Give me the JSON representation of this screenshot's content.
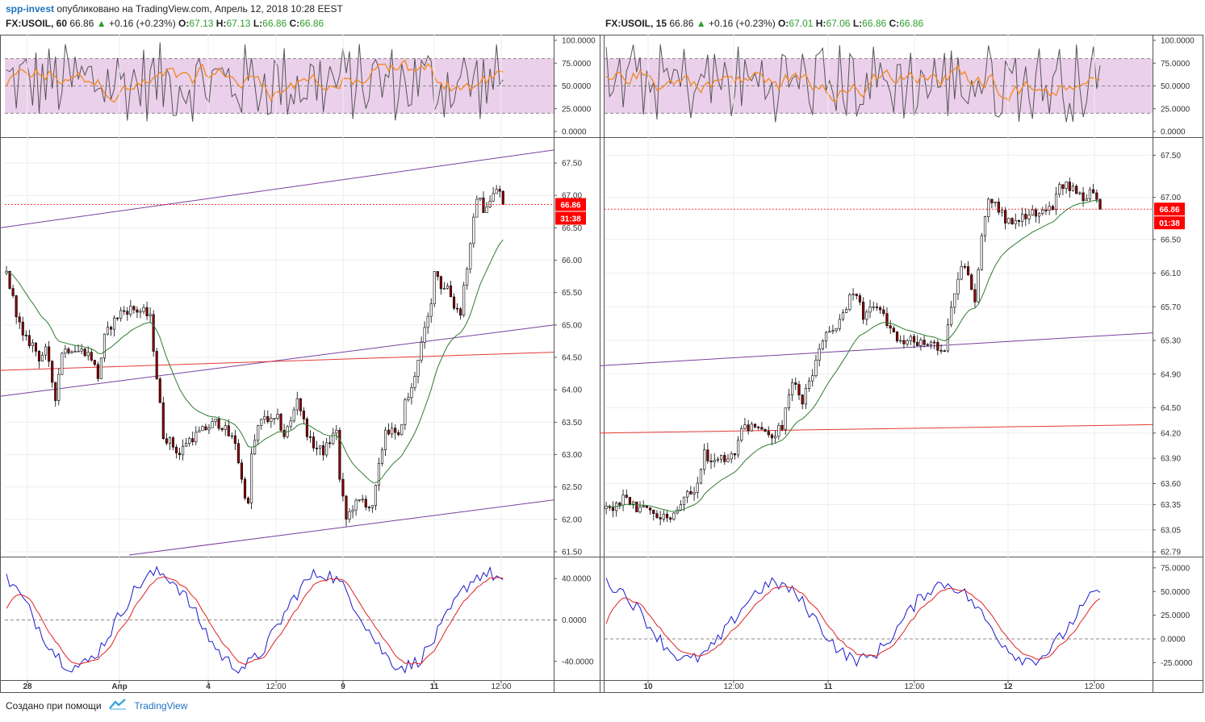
{
  "header": {
    "author": "spp-invest",
    "published": "опубликовано на TradingView.com, Апрель 12, 2018 10:28 EEST"
  },
  "footer": {
    "created_with": "Создано при помощи",
    "brand": "TradingView"
  },
  "colors": {
    "up_candle": "#ffffff",
    "down_candle": "#8b0000",
    "ma": "#2e7d32",
    "channel": "#7b3fa0",
    "support": "#e53935",
    "rsi_band": "#e8c8e8",
    "rsi_fast": "#555555",
    "rsi_slow": "#f08c2a",
    "stoch_k": "#1a1acc",
    "stoch_d": "#e02020",
    "price_label": "#ff0000"
  },
  "panes": [
    {
      "symbol": "FX:USOIL, 60",
      "last": "66.86",
      "change": "+0.16 (+0.23%)",
      "ohlc": [
        [
          "O:",
          "67.13"
        ],
        [
          "H:",
          "67.13"
        ],
        [
          "L:",
          "66.86"
        ],
        [
          "C:",
          "66.86"
        ]
      ],
      "price_label": "66.86",
      "countdown": "31:38",
      "rsi_ticks": [
        "100.0000",
        "75.0000",
        "50.0000",
        "25.0000",
        "0.0000"
      ],
      "price_ticks": [
        "67.50",
        "67.00",
        "66.50",
        "66.00",
        "65.50",
        "65.00",
        "64.50",
        "64.00",
        "63.50",
        "63.00",
        "62.50",
        "62.00",
        "61.50"
      ],
      "osc_ticks": [
        "40.0000",
        "0.0000",
        "-40.0000"
      ],
      "x_ticks": [
        "28",
        "Апр",
        "4",
        "12:00",
        "9",
        "11",
        "12:00"
      ]
    },
    {
      "symbol": "FX:USOIL, 15",
      "last": "66.86",
      "change": "+0.16 (+0.23%)",
      "ohlc": [
        [
          "O:",
          "67.01"
        ],
        [
          "H:",
          "67.06"
        ],
        [
          "L:",
          "66.86"
        ],
        [
          "C:",
          "66.86"
        ]
      ],
      "price_label": "66.86",
      "countdown": "01:38",
      "rsi_ticks": [
        "100.0000",
        "75.0000",
        "50.0000",
        "25.0000",
        "0.0000"
      ],
      "price_ticks": [
        "67.50",
        "67.00",
        "66.50",
        "66.10",
        "65.70",
        "65.30",
        "64.90",
        "64.50",
        "64.20",
        "63.90",
        "63.60",
        "63.35",
        "63.05",
        "62.79"
      ],
      "osc_ticks": [
        "75.0000",
        "50.0000",
        "25.0000",
        "0.0000",
        "-25.0000"
      ],
      "x_ticks": [
        "10",
        "12:00",
        "11",
        "12:00",
        "12",
        "12:00"
      ]
    }
  ],
  "chart_data": [
    {
      "type": "candlestick",
      "title": "FX:USOIL, 60",
      "ylim": [
        61.5,
        67.75
      ],
      "current_price": 66.86,
      "close_path": [
        [
          0,
          65.8
        ],
        [
          2,
          65.4
        ],
        [
          5,
          64.8
        ],
        [
          8,
          64.7
        ],
        [
          10,
          64.5
        ],
        [
          12,
          64.6
        ],
        [
          15,
          63.9
        ],
        [
          17,
          64.6
        ],
        [
          20,
          64.65
        ],
        [
          22,
          64.6
        ],
        [
          24,
          64.6
        ],
        [
          26,
          64.5
        ],
        [
          28,
          64.2
        ],
        [
          30,
          64.8
        ],
        [
          32,
          65.0
        ],
        [
          35,
          65.2
        ],
        [
          38,
          65.25
        ],
        [
          42,
          65.2
        ],
        [
          44,
          65.1
        ],
        [
          46,
          64.2
        ],
        [
          48,
          63.3
        ],
        [
          50,
          63.2
        ],
        [
          53,
          63.0
        ],
        [
          55,
          63.2
        ],
        [
          58,
          63.3
        ],
        [
          61,
          63.4
        ],
        [
          64,
          63.5
        ],
        [
          66,
          63.45
        ],
        [
          68,
          63.3
        ],
        [
          70,
          63.2
        ],
        [
          72,
          62.6
        ],
        [
          74,
          62.2
        ],
        [
          75,
          63.0
        ],
        [
          77,
          63.4
        ],
        [
          79,
          63.6
        ],
        [
          81,
          63.5
        ],
        [
          83,
          63.55
        ],
        [
          85,
          63.3
        ],
        [
          87,
          63.5
        ],
        [
          89,
          63.9
        ],
        [
          91,
          63.5
        ],
        [
          93,
          63.2
        ],
        [
          95,
          63.1
        ],
        [
          97,
          63.05
        ],
        [
          99,
          63.2
        ],
        [
          101,
          63.4
        ],
        [
          102,
          62.6
        ],
        [
          104,
          62.0
        ],
        [
          106,
          62.2
        ],
        [
          109,
          62.3
        ],
        [
          112,
          62.15
        ],
        [
          114,
          62.8
        ],
        [
          116,
          63.4
        ],
        [
          118,
          63.35
        ],
        [
          120,
          63.25
        ],
        [
          122,
          63.8
        ],
        [
          124,
          64.0
        ],
        [
          126,
          64.5
        ],
        [
          128,
          64.9
        ],
        [
          130,
          65.3
        ],
        [
          131,
          65.9
        ],
        [
          133,
          65.6
        ],
        [
          135,
          65.6
        ],
        [
          137,
          65.3
        ],
        [
          139,
          65.2
        ],
        [
          140,
          65.6
        ],
        [
          142,
          66.2
        ],
        [
          144,
          67.0
        ],
        [
          146,
          66.8
        ],
        [
          148,
          66.9
        ],
        [
          150,
          67.1
        ],
        [
          151,
          67.05
        ],
        [
          152,
          66.86
        ]
      ]
    },
    {
      "type": "candlestick",
      "title": "FX:USOIL, 15",
      "ylim": [
        62.79,
        67.6
      ],
      "current_price": 66.86,
      "close_path": [
        [
          0,
          63.3
        ],
        [
          3,
          63.35
        ],
        [
          6,
          63.45
        ],
        [
          9,
          63.3
        ],
        [
          12,
          63.28
        ],
        [
          15,
          63.25
        ],
        [
          18,
          63.2
        ],
        [
          21,
          63.3
        ],
        [
          24,
          63.45
        ],
        [
          27,
          63.6
        ],
        [
          29,
          63.95
        ],
        [
          32,
          63.85
        ],
        [
          35,
          63.9
        ],
        [
          38,
          63.95
        ],
        [
          40,
          64.3
        ],
        [
          43,
          64.25
        ],
        [
          46,
          64.2
        ],
        [
          49,
          64.15
        ],
        [
          52,
          64.3
        ],
        [
          55,
          64.8
        ],
        [
          58,
          64.6
        ],
        [
          61,
          64.9
        ],
        [
          64,
          65.3
        ],
        [
          66,
          65.4
        ],
        [
          68,
          65.4
        ],
        [
          70,
          65.6
        ],
        [
          72,
          65.85
        ],
        [
          74,
          65.8
        ],
        [
          76,
          65.6
        ],
        [
          78,
          65.65
        ],
        [
          80,
          65.7
        ],
        [
          82,
          65.6
        ],
        [
          84,
          65.4
        ],
        [
          86,
          65.35
        ],
        [
          88,
          65.3
        ],
        [
          90,
          65.3
        ],
        [
          92,
          65.25
        ],
        [
          94,
          65.3
        ],
        [
          96,
          65.25
        ],
        [
          98,
          65.2
        ],
        [
          100,
          65.22
        ],
        [
          101,
          65.5
        ],
        [
          103,
          65.9
        ],
        [
          105,
          66.2
        ],
        [
          107,
          66.1
        ],
        [
          109,
          65.8
        ],
        [
          111,
          66.5
        ],
        [
          113,
          67.0
        ],
        [
          115,
          66.9
        ],
        [
          117,
          66.8
        ],
        [
          119,
          66.7
        ],
        [
          121,
          66.75
        ],
        [
          124,
          66.8
        ],
        [
          127,
          66.8
        ],
        [
          130,
          66.85
        ],
        [
          132,
          66.9
        ],
        [
          134,
          67.1
        ],
        [
          136,
          67.15
        ],
        [
          139,
          67.05
        ],
        [
          141,
          67.0
        ],
        [
          143,
          67.05
        ],
        [
          145,
          66.95
        ],
        [
          146,
          66.86
        ]
      ]
    }
  ]
}
